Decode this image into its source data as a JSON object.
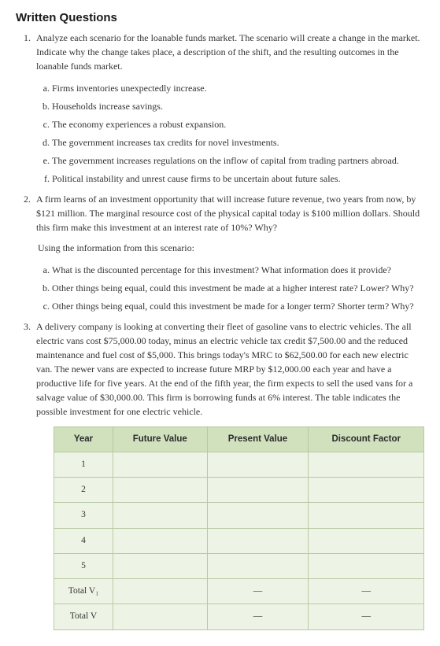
{
  "heading": "Written Questions",
  "q1": {
    "prompt": "Analyze each scenario for the loanable funds market. The scenario will create a change in the market. Indicate why the change takes place, a description of the shift, and the resulting outcomes in the loanable funds market.",
    "items": [
      "Firms inventories unexpectedly increase.",
      "Households increase savings.",
      "The economy experiences a robust expansion.",
      "The government increases tax credits for novel investments.",
      "The government increases regulations on the inflow of capital from trading partners abroad.",
      "Political instability and unrest cause firms to be uncertain about future sales."
    ]
  },
  "q2": {
    "prompt": "A firm learns of an investment opportunity that will increase future revenue, two years from now, by $121 million. The marginal resource cost of the physical capital today is $100 million dollars. Should this firm make this investment at an interest rate of 10%? Why?",
    "follow_up": "Using the information from this scenario:",
    "items": [
      "What is the discounted percentage for this investment? What information does it provide?",
      "Other things being equal, could this investment be made at a higher interest rate? Lower? Why?",
      "Other things being equal, could this investment be made for a longer term? Shorter term? Why?"
    ]
  },
  "q3": {
    "prompt": "A delivery company is looking at converting their fleet of gasoline vans to electric vehicles. The all electric vans cost $75,000.00 today, minus an electric vehicle tax credit $7,500.00 and the reduced maintenance and fuel cost of $5,000. This brings today's MRC to $62,500.00 for each new electric van. The newer vans are expected to increase future MRP by $12,000.00 each year and have a productive life for five years. At the end of the fifth year, the firm expects to sell the used vans for a salvage value of $30,000.00. This firm is borrowing funds at 6% interest. The table indicates the possible investment for one electric vehicle."
  },
  "table": {
    "headers": [
      "Year",
      "Future Value",
      "Present Value",
      "Discount Factor"
    ],
    "rows": [
      {
        "year": "1",
        "fv": "",
        "pv": "",
        "df": ""
      },
      {
        "year": "2",
        "fv": "",
        "pv": "",
        "df": ""
      },
      {
        "year": "3",
        "fv": "",
        "pv": "",
        "df": ""
      },
      {
        "year": "4",
        "fv": "",
        "pv": "",
        "df": ""
      },
      {
        "year": "5",
        "fv": "",
        "pv": "",
        "df": ""
      },
      {
        "year": "Total V₁",
        "fv": "",
        "pv": "—",
        "df": "—"
      },
      {
        "year": "Total V",
        "fv": "",
        "pv": "—",
        "df": "—"
      }
    ],
    "style": {
      "header_bg": "#d1e0bd",
      "row_bg": "#eef4e5",
      "border": "#b8c9a1",
      "th_color": "#2b2b2b",
      "td_color": "#333333"
    }
  }
}
